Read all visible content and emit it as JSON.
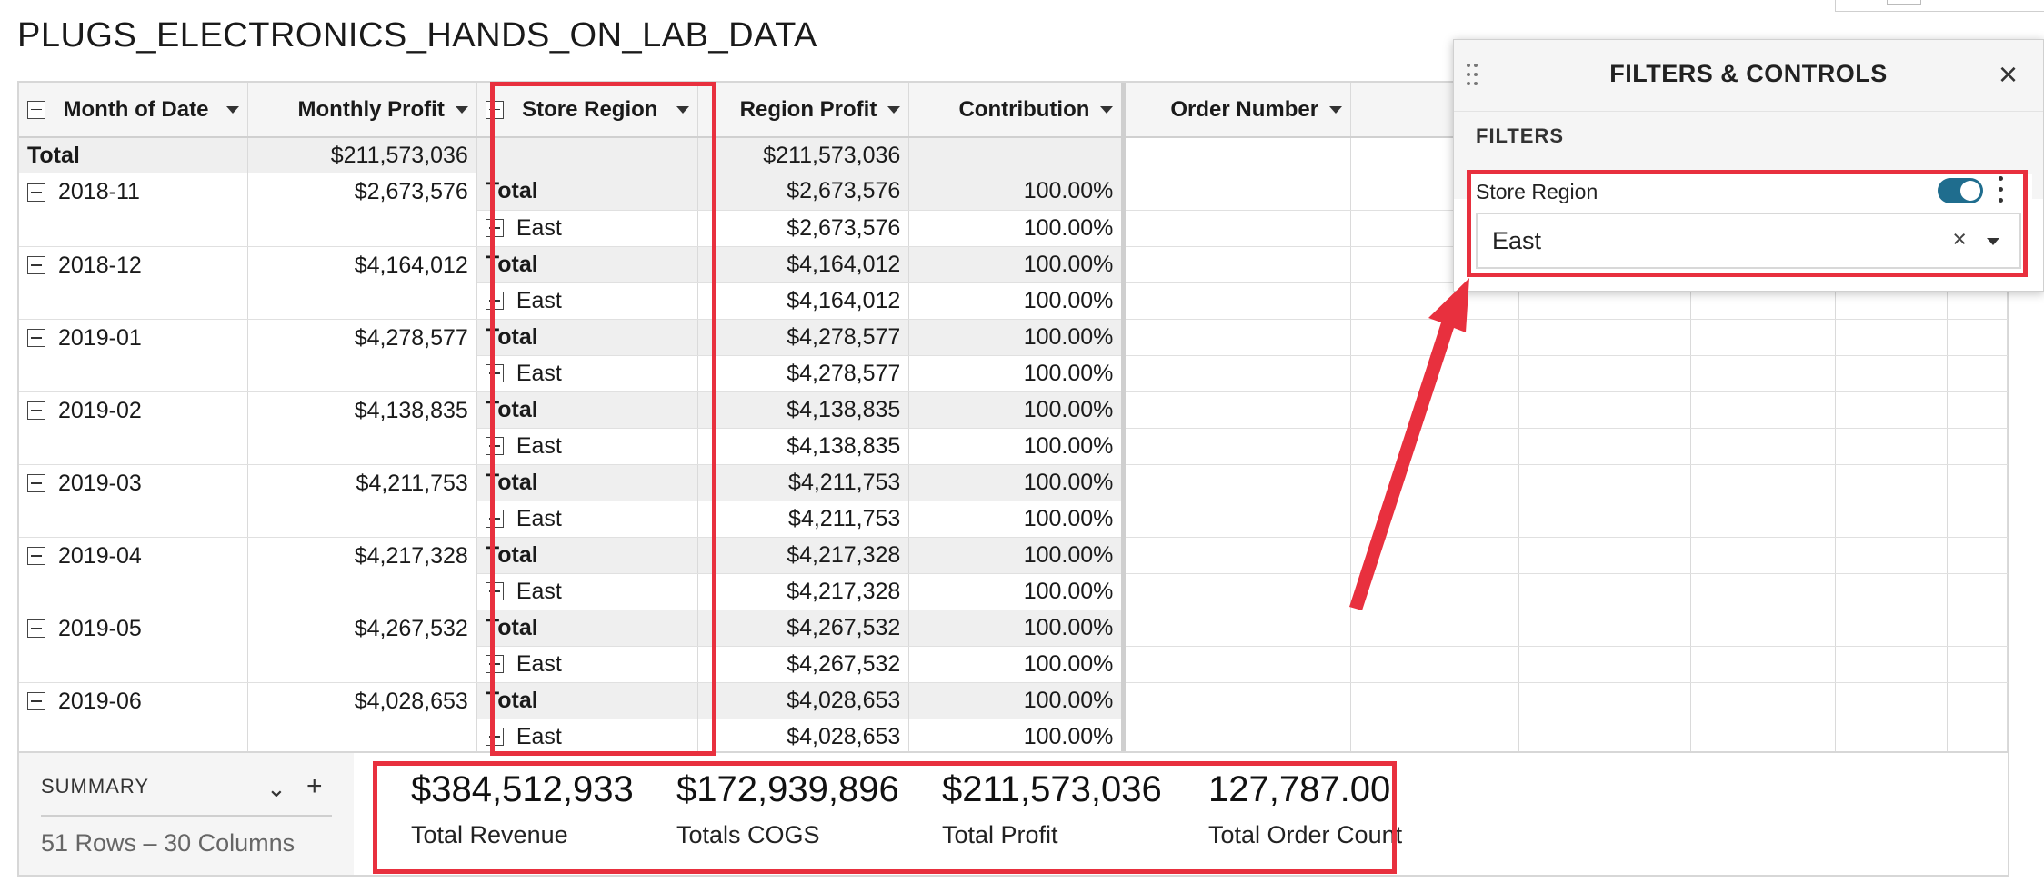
{
  "page_title": "PLUGS_ELECTRONICS_HANDS_ON_LAB_DATA",
  "columns": {
    "month": "Month of Date",
    "monthly_profit": "Monthly Profit",
    "store_region": "Store Region",
    "region_profit": "Region Profit",
    "contribution": "Contribution",
    "order_number": "Order Number"
  },
  "grand_total": {
    "label": "Total",
    "monthly_profit": "$211,573,036",
    "region_profit": "$211,573,036"
  },
  "rows": [
    {
      "month": "2018-11",
      "monthly_profit": "$2,673,576",
      "total_label": "Total",
      "total_profit": "$2,673,576",
      "total_contribution": "100.00%",
      "region": "East",
      "region_profit": "$2,673,576",
      "region_contribution": "100.00%"
    },
    {
      "month": "2018-12",
      "monthly_profit": "$4,164,012",
      "total_label": "Total",
      "total_profit": "$4,164,012",
      "total_contribution": "100.00%",
      "region": "East",
      "region_profit": "$4,164,012",
      "region_contribution": "100.00%"
    },
    {
      "month": "2019-01",
      "monthly_profit": "$4,278,577",
      "total_label": "Total",
      "total_profit": "$4,278,577",
      "total_contribution": "100.00%",
      "region": "East",
      "region_profit": "$4,278,577",
      "region_contribution": "100.00%"
    },
    {
      "month": "2019-02",
      "monthly_profit": "$4,138,835",
      "total_label": "Total",
      "total_profit": "$4,138,835",
      "total_contribution": "100.00%",
      "region": "East",
      "region_profit": "$4,138,835",
      "region_contribution": "100.00%"
    },
    {
      "month": "2019-03",
      "monthly_profit": "$4,211,753",
      "total_label": "Total",
      "total_profit": "$4,211,753",
      "total_contribution": "100.00%",
      "region": "East",
      "region_profit": "$4,211,753",
      "region_contribution": "100.00%"
    },
    {
      "month": "2019-04",
      "monthly_profit": "$4,217,328",
      "total_label": "Total",
      "total_profit": "$4,217,328",
      "total_contribution": "100.00%",
      "region": "East",
      "region_profit": "$4,217,328",
      "region_contribution": "100.00%"
    },
    {
      "month": "2019-05",
      "monthly_profit": "$4,267,532",
      "total_label": "Total",
      "total_profit": "$4,267,532",
      "total_contribution": "100.00%",
      "region": "East",
      "region_profit": "$4,267,532",
      "region_contribution": "100.00%"
    },
    {
      "month": "2019-06",
      "monthly_profit": "$4,028,653",
      "total_label": "Total",
      "total_profit": "$4,028,653",
      "total_contribution": "100.00%",
      "region": "East",
      "region_profit": "$4,028,653",
      "region_contribution": "100.00%"
    }
  ],
  "summary": {
    "label": "SUMMARY",
    "row_count": "51 Rows – 30 Columns",
    "kpis": [
      {
        "value": "$384,512,933",
        "label": "Total Revenue"
      },
      {
        "value": "$172,939,896",
        "label": "Totals COGS"
      },
      {
        "value": "$211,573,036",
        "label": "Total Profit"
      },
      {
        "value": "127,787.00",
        "label": "Total Order Count"
      }
    ]
  },
  "panel": {
    "title": "FILTERS & CONTROLS",
    "section": "FILTERS",
    "filter": {
      "name": "Store Region",
      "value": "East",
      "enabled": true
    }
  },
  "colors": {
    "accent": "#1f6d8e",
    "highlight": "#e8303e"
  }
}
